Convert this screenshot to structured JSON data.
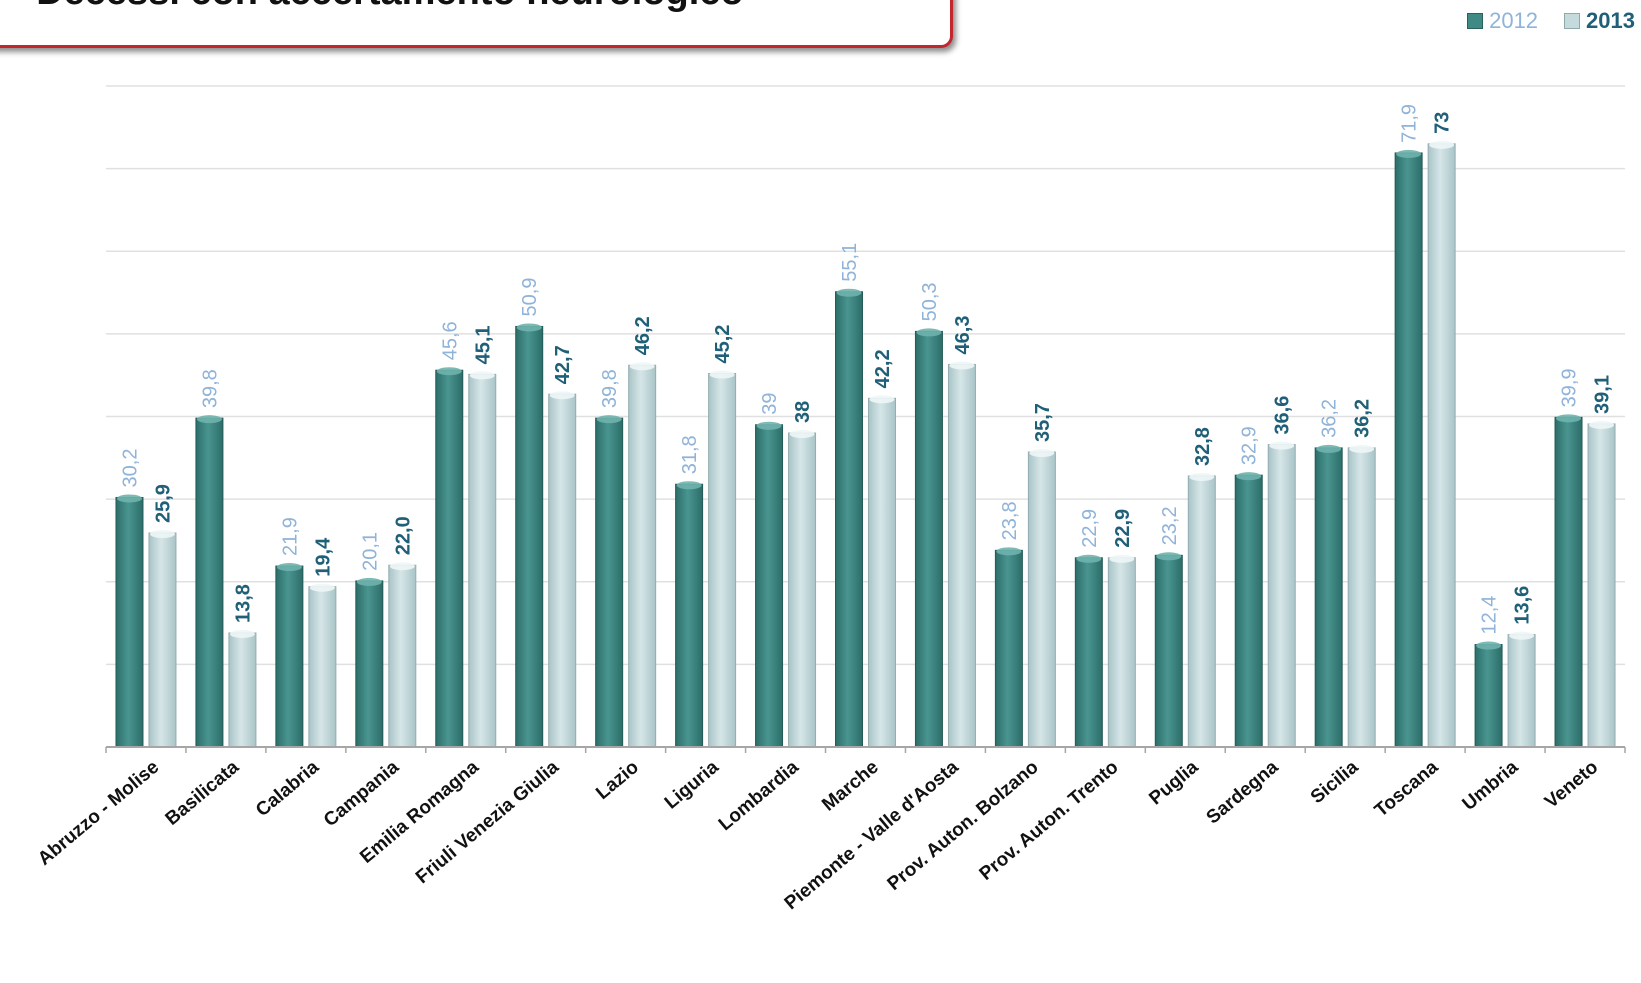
{
  "title": "- Decessi con accertamento neurologico",
  "legend": [
    {
      "label": "2012",
      "color": "#3f8a85"
    },
    {
      "label": "2013",
      "color": "#c4dadd"
    }
  ],
  "chart_data": {
    "type": "bar",
    "title": "- Decessi con accertamento neurologico",
    "xlabel": "",
    "ylabel": "",
    "ylim": [
      0,
      80
    ],
    "grid": true,
    "legend_position": "top-right",
    "categories": [
      "Abruzzo - Molise",
      "Basilicata",
      "Calabria",
      "Campania",
      "Emilia Romagna",
      "Friuli Venezia Giulia",
      "Lazio",
      "Liguria",
      "Lombardia",
      "Marche",
      "Piemonte - Valle d'Aosta",
      "Prov. Auton. Bolzano",
      "Prov. Auton. Trento",
      "Puglia",
      "Sardegna",
      "Sicilia",
      "Toscana",
      "Umbria",
      "Veneto"
    ],
    "series": [
      {
        "name": "2012",
        "color": "#3f8a85",
        "label_color": "#8fb3d9",
        "values": [
          30.2,
          39.8,
          21.9,
          20.1,
          45.6,
          50.9,
          39.8,
          31.8,
          39,
          55.1,
          50.3,
          23.8,
          22.9,
          23.2,
          32.9,
          36.2,
          71.9,
          12.4,
          39.9
        ],
        "labels": [
          "30,2",
          "39,8",
          "21,9",
          "20,1",
          "45,6",
          "50,9",
          "39,8",
          "31,8",
          "39",
          "55,1",
          "50,3",
          "23,8",
          "22,9",
          "23,2",
          "32,9",
          "36,2",
          "71,9",
          "12,4",
          "39,9"
        ]
      },
      {
        "name": "2013",
        "color": "#c4dadd",
        "label_color": "#1f5f78",
        "values": [
          25.9,
          13.8,
          19.4,
          22.0,
          45.1,
          42.7,
          46.2,
          45.2,
          38,
          42.2,
          46.3,
          35.7,
          22.9,
          32.8,
          36.6,
          36.2,
          73,
          13.6,
          39.1
        ],
        "labels": [
          "25,9",
          "13,8",
          "19,4",
          "22,0",
          "45,1",
          "42,7",
          "46,2",
          "45,2",
          "38",
          "42,2",
          "46,3",
          "35,7",
          "22,9",
          "32,8",
          "36,6",
          "36,2",
          "73",
          "13,6",
          "39,1"
        ]
      }
    ]
  }
}
